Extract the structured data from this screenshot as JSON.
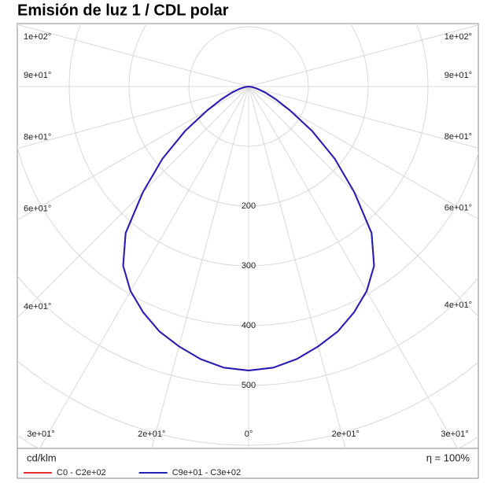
{
  "chart_data": {
    "type": "polar",
    "title": "Emisión de luz 1 / CDL polar",
    "unit": "cd/klm",
    "efficiency": "η = 100%",
    "angles": [
      0,
      5,
      10,
      15,
      20,
      25,
      30,
      35,
      40,
      45,
      50,
      55,
      60,
      65,
      70,
      75,
      80,
      85,
      90
    ],
    "series": [
      {
        "name": "C0 - C2e+02",
        "color": "#e53030",
        "values": [
          475,
          472,
          463,
          450,
          436,
          417,
          395,
          366,
          320,
          250,
          188,
          130,
          80,
          50,
          30,
          16,
          8,
          3,
          0
        ]
      },
      {
        "name": "C9e+01 - C3e+02",
        "color": "#2222bb",
        "values": [
          475,
          472,
          463,
          450,
          436,
          417,
          395,
          366,
          320,
          250,
          188,
          130,
          80,
          50,
          30,
          16,
          8,
          3,
          0
        ]
      }
    ],
    "angle_ticks": [
      {
        "value": 0,
        "label": "0°"
      },
      {
        "value": 15,
        "label": "2e+01°"
      },
      {
        "value": 30,
        "label": "3e+01°"
      },
      {
        "value": 45,
        "label": "4e+01°"
      },
      {
        "value": 60,
        "label": "6e+01°"
      },
      {
        "value": 75,
        "label": "8e+01°"
      },
      {
        "value": 90,
        "label": "9e+01°"
      },
      {
        "value": 105,
        "label": "1e+02°"
      }
    ],
    "rlim": [
      0,
      600
    ],
    "rticks": [
      {
        "value": 100,
        "label": null
      },
      200,
      300,
      400,
      500,
      {
        "value": 600,
        "label": null
      },
      {
        "value": 700,
        "label": null
      }
    ],
    "grid": true
  }
}
